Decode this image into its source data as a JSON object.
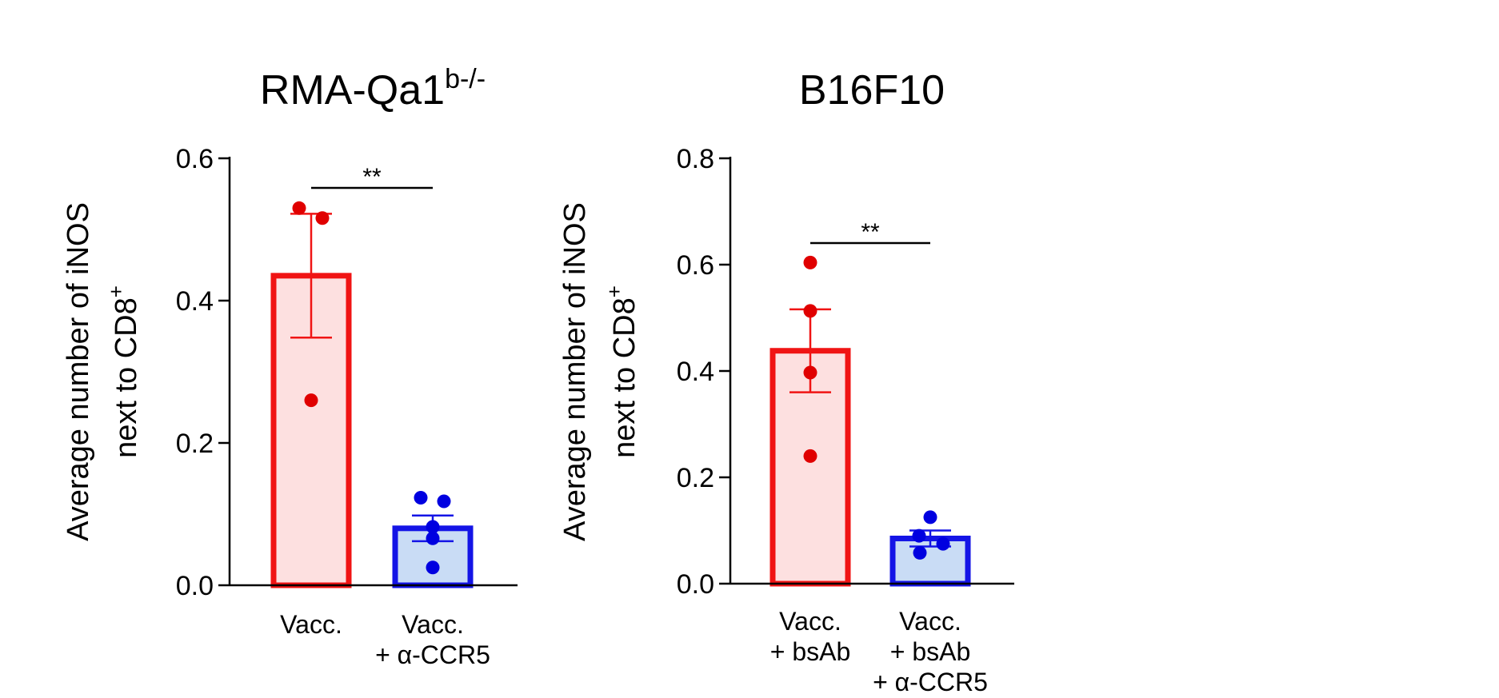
{
  "chart_data": [
    {
      "type": "bar",
      "title": "RMA-Qa1",
      "title_superscript": "b-/-",
      "ylabel_line1": "Average number of iNOS",
      "ylabel_line2": "next to CD8",
      "ylabel_superscript": "+",
      "ylim": [
        0,
        0.6
      ],
      "yticks": [
        "0.0",
        "0.2",
        "0.4",
        "0.6"
      ],
      "ytick_values": [
        0,
        0.2,
        0.4,
        0.6
      ],
      "significance": "**",
      "categories": [
        {
          "lines": [
            "Vacc."
          ]
        },
        {
          "lines": [
            "Vacc.",
            "+ α-CCR5"
          ]
        }
      ],
      "bars": [
        {
          "name": "Vacc.",
          "mean": 0.435,
          "err_low": 0.348,
          "err_high": 0.522,
          "points": [
            0.53,
            0.516,
            0.26
          ],
          "point_offsets": [
            -15,
            14,
            0
          ],
          "stroke": "#f01414",
          "fill": "#fde0e0",
          "marker": "#e00000"
        },
        {
          "name": "Vacc. + α-CCR5",
          "mean": 0.08,
          "err_low": 0.062,
          "err_high": 0.098,
          "points": [
            0.123,
            0.118,
            0.082,
            0.066,
            0.025
          ],
          "point_offsets": [
            -15,
            14,
            0,
            0,
            0
          ],
          "stroke": "#1414e6",
          "fill": "#c9dcf5",
          "marker": "#0000e0"
        }
      ]
    },
    {
      "type": "bar",
      "title": "B16F10",
      "title_superscript": "",
      "ylabel_line1": "Average number of iNOS",
      "ylabel_line2": "next to CD8",
      "ylabel_superscript": "+",
      "ylim": [
        0,
        0.8
      ],
      "yticks": [
        "0.0",
        "0.2",
        "0.4",
        "0.6",
        "0.8"
      ],
      "ytick_values": [
        0,
        0.2,
        0.4,
        0.6,
        0.8
      ],
      "significance": "**",
      "categories": [
        {
          "lines": [
            "Vacc.",
            "+ bsAb"
          ]
        },
        {
          "lines": [
            "Vacc.",
            "+ bsAb",
            "+ α-CCR5"
          ]
        }
      ],
      "bars": [
        {
          "name": "Vacc. + bsAb",
          "mean": 0.438,
          "err_low": 0.36,
          "err_high": 0.516,
          "points": [
            0.604,
            0.513,
            0.397,
            0.24
          ],
          "point_offsets": [
            0,
            0,
            0,
            0
          ],
          "stroke": "#f01414",
          "fill": "#fde0e0",
          "marker": "#e00000"
        },
        {
          "name": "Vacc. + bsAb + α-CCR5",
          "mean": 0.085,
          "err_low": 0.07,
          "err_high": 0.1,
          "points": [
            0.125,
            0.09,
            0.075,
            0.058
          ],
          "point_offsets": [
            0,
            -14,
            16,
            -13
          ],
          "stroke": "#1414e6",
          "fill": "#c9dcf5",
          "marker": "#0000e0"
        }
      ]
    }
  ]
}
